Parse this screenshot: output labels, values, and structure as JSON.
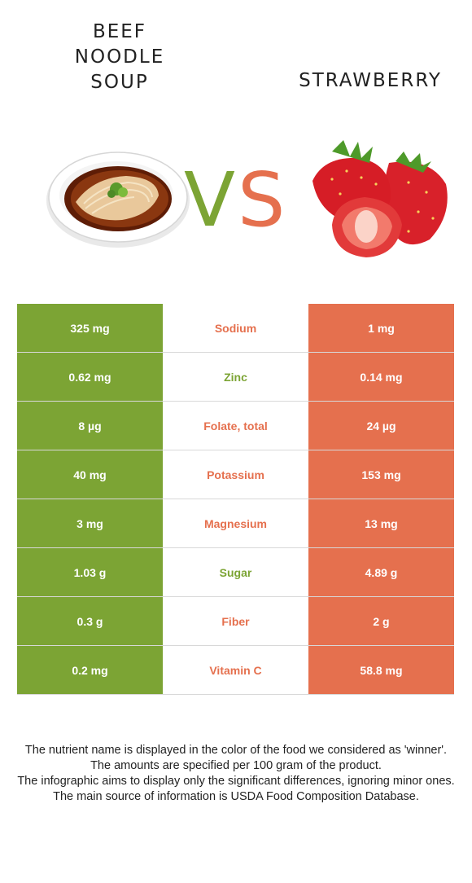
{
  "left_food": {
    "name": "BEEF\nNOODLE\nSOUP",
    "color": "#7ca434"
  },
  "right_food": {
    "name": "STRAWBERRY",
    "color": "#e5704e"
  },
  "vs": {
    "v": "V",
    "s": "S"
  },
  "rows": [
    {
      "left": "325 mg",
      "nutrient": "Sodium",
      "right": "1 mg",
      "winner": "right"
    },
    {
      "left": "0.62 mg",
      "nutrient": "Zinc",
      "right": "0.14 mg",
      "winner": "left"
    },
    {
      "left": "8 µg",
      "nutrient": "Folate, total",
      "right": "24 µg",
      "winner": "right"
    },
    {
      "left": "40 mg",
      "nutrient": "Potassium",
      "right": "153 mg",
      "winner": "right"
    },
    {
      "left": "3 mg",
      "nutrient": "Magnesium",
      "right": "13 mg",
      "winner": "right"
    },
    {
      "left": "1.03 g",
      "nutrient": "Sugar",
      "right": "4.89 g",
      "winner": "left"
    },
    {
      "left": "0.3 g",
      "nutrient": "Fiber",
      "right": "2 g",
      "winner": "right"
    },
    {
      "left": "0.2 mg",
      "nutrient": "Vitamin C",
      "right": "58.8 mg",
      "winner": "right"
    }
  ],
  "footer": [
    "The nutrient name is displayed in the color of the food we considered as 'winner'.",
    "The amounts are specified per 100 gram of the product.",
    "The infographic aims to display only the significant differences, ignoring minor ones.",
    "The main source of information is USDA Food Composition Database."
  ]
}
